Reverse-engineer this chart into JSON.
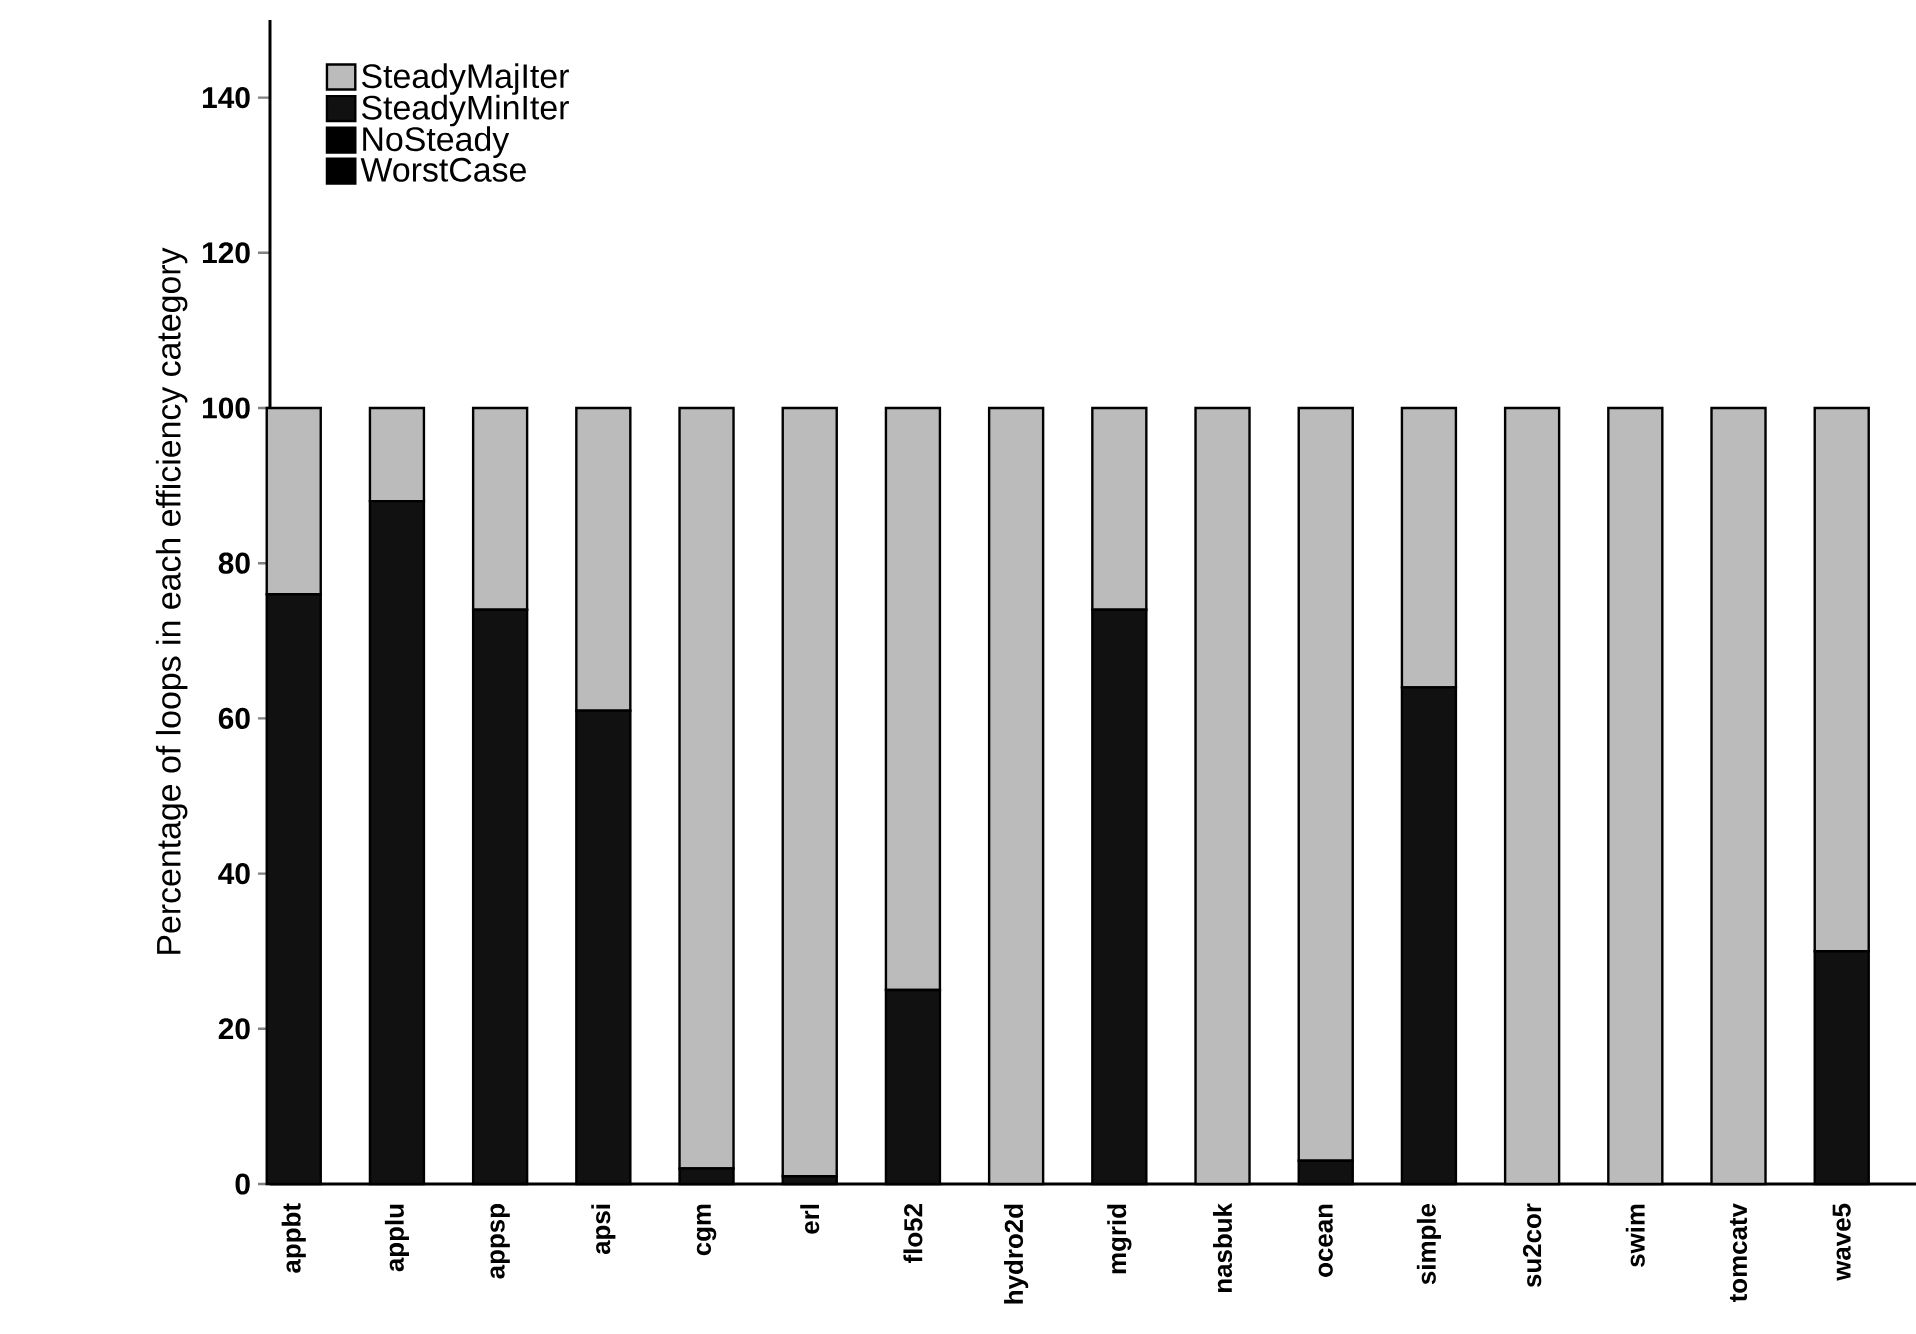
{
  "chart_data": {
    "type": "bar",
    "stacked": true,
    "ylabel": "Percentage of loops in each efficiency category",
    "categories": [
      "appbt",
      "applu",
      "appsp",
      "apsi",
      "cgm",
      "erl",
      "flo52",
      "hydro2d",
      "mgrid",
      "nasbuk",
      "ocean",
      "simple",
      "su2cor",
      "swim",
      "tomcatv",
      "wave5"
    ],
    "series": [
      {
        "name": "WorstCase",
        "color": "#000000",
        "values": [
          0,
          0,
          0,
          0,
          0,
          0,
          0,
          0,
          0,
          0,
          0,
          0,
          0,
          0,
          0,
          0
        ]
      },
      {
        "name": "NoSteady",
        "color": "#000000",
        "values": [
          0,
          0,
          0,
          0,
          0,
          0,
          0,
          0,
          0,
          0,
          0,
          0,
          0,
          0,
          0,
          0
        ]
      },
      {
        "name": "SteadyMinIter",
        "color": "#111111",
        "values": [
          76,
          88,
          74,
          61,
          2,
          1,
          25,
          0,
          74,
          0,
          3,
          64,
          0,
          0,
          0,
          30
        ]
      },
      {
        "name": "SteadyMajIter",
        "color": "#bbbbbb",
        "values": [
          24,
          12,
          26,
          39,
          98,
          99,
          75,
          100,
          26,
          100,
          97,
          36,
          100,
          100,
          100,
          70
        ]
      }
    ],
    "ylim": [
      0,
      150
    ],
    "yticks": [
      0,
      20,
      40,
      60,
      80,
      100,
      120,
      140
    ],
    "grid": false,
    "legend": "top left"
  }
}
